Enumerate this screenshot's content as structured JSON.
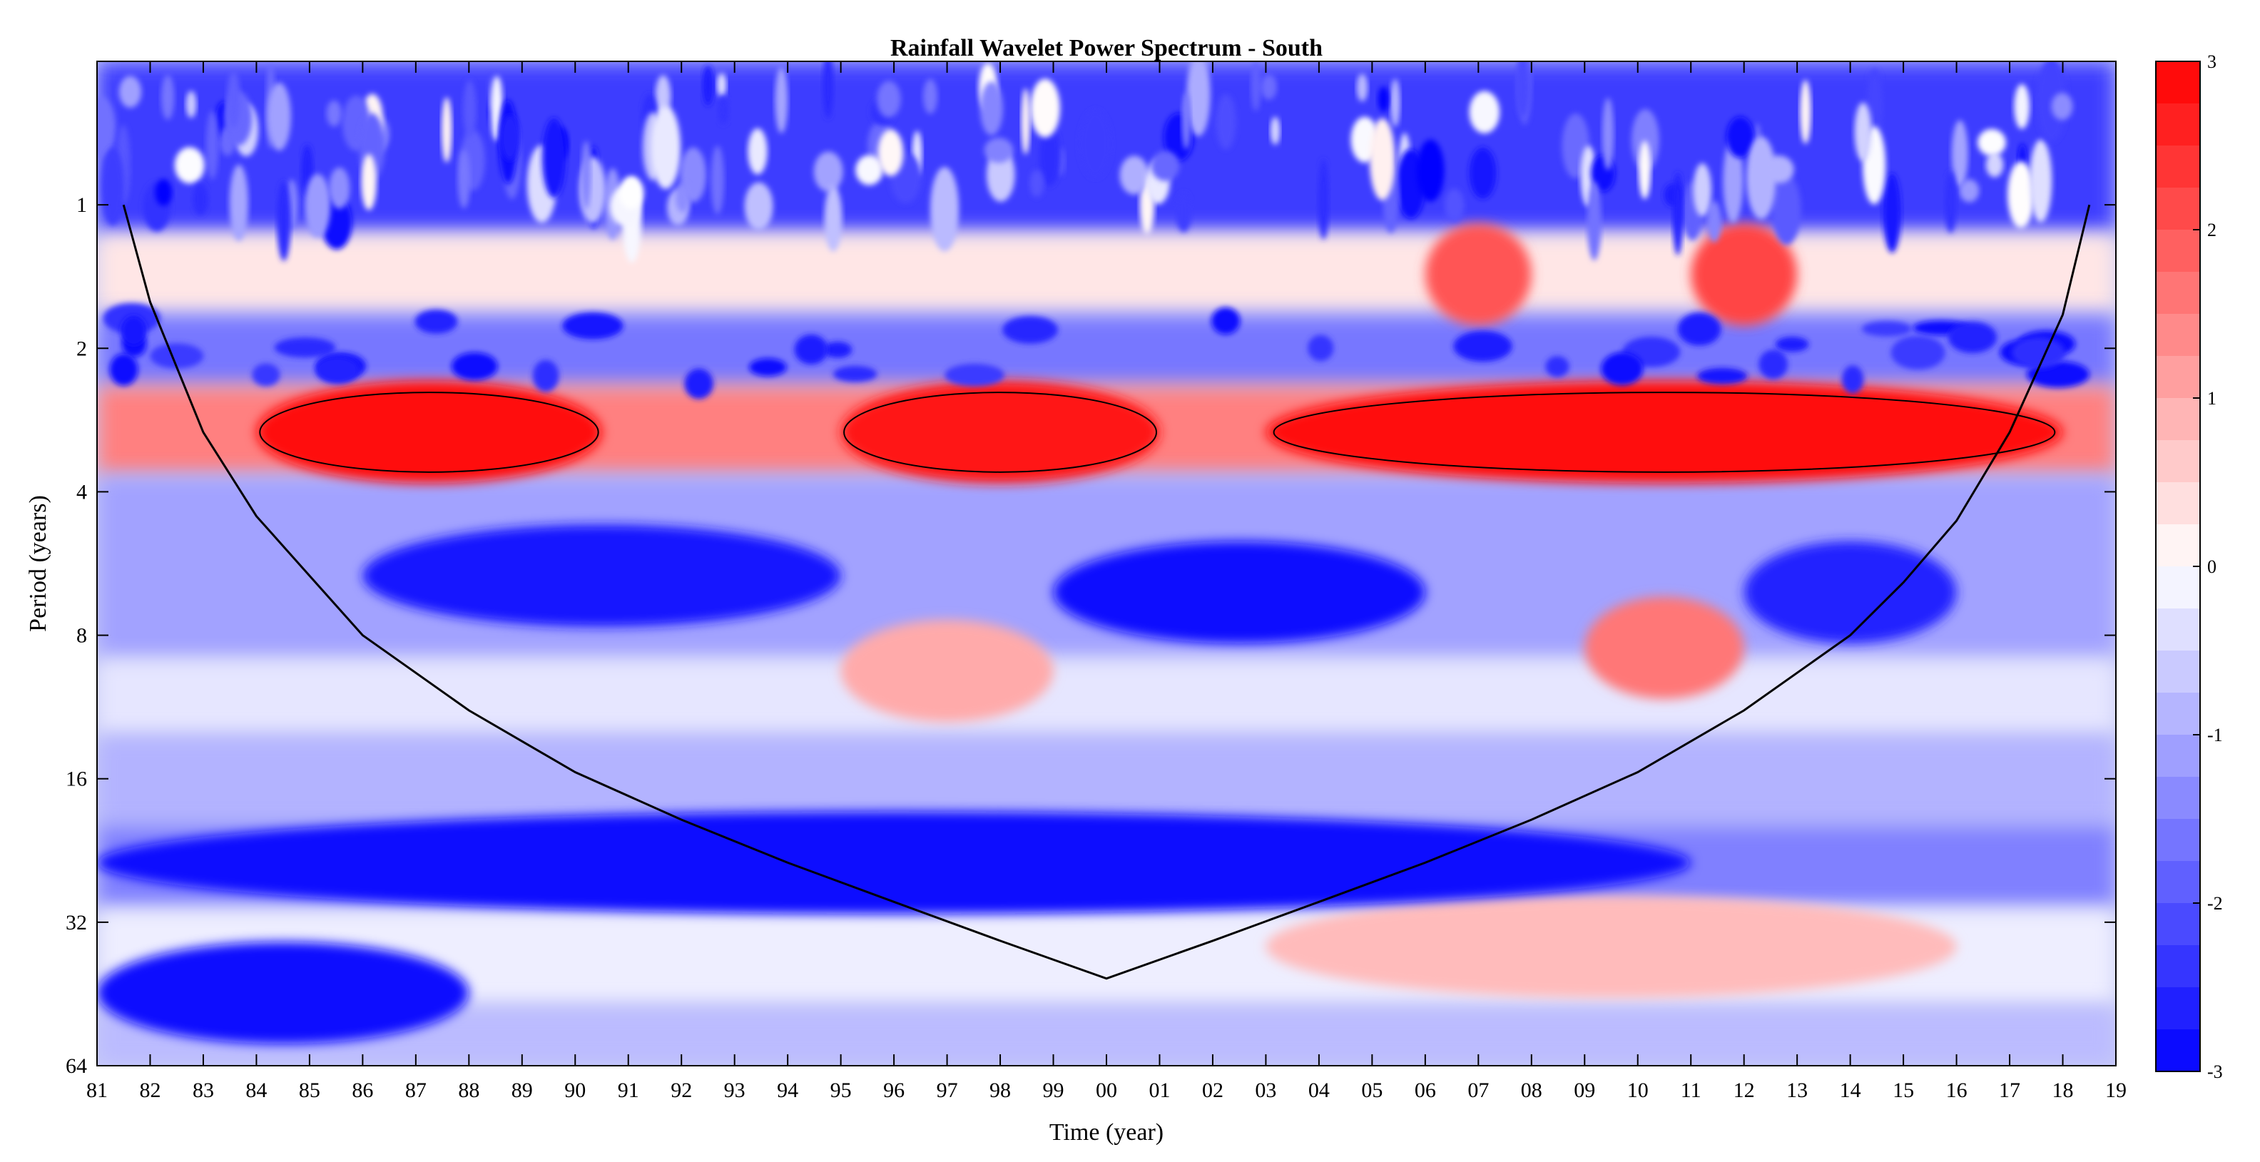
{
  "chart_data": {
    "type": "heatmap",
    "title": "Rainfall Wavelet Power Spectrum - South",
    "xlabel": "Time (year)",
    "ylabel": "Period (years)",
    "x_ticks": [
      "81",
      "82",
      "83",
      "84",
      "85",
      "86",
      "87",
      "88",
      "89",
      "90",
      "91",
      "92",
      "93",
      "94",
      "95",
      "96",
      "97",
      "98",
      "99",
      "00",
      "01",
      "02",
      "03",
      "04",
      "05",
      "06",
      "07",
      "08",
      "09",
      "10",
      "11",
      "12",
      "13",
      "14",
      "15",
      "16",
      "17",
      "18",
      "19"
    ],
    "y_ticks": [
      {
        "label": "1",
        "value": 1
      },
      {
        "label": "2",
        "value": 2
      },
      {
        "label": "4",
        "value": 4
      },
      {
        "label": "8",
        "value": 8
      },
      {
        "label": "16",
        "value": 16
      },
      {
        "label": "32",
        "value": 32
      },
      {
        "label": "64",
        "value": 64
      }
    ],
    "y_scale": "log2",
    "y_reversed": true,
    "ylim": [
      0.5,
      64
    ],
    "xlim": [
      1981,
      2019
    ],
    "colorbar": {
      "range": [
        -3,
        3
      ],
      "ticks": [
        "3",
        "2",
        "1",
        "0",
        "-1",
        "-2",
        "-3"
      ],
      "low_color": "#0000ff",
      "mid_color": "#ffffff",
      "high_color": "#ff0000",
      "levels": 24
    },
    "cone_of_influence": [
      [
        1981.5,
        1.0
      ],
      [
        1982.0,
        1.6
      ],
      [
        1983.0,
        3.0
      ],
      [
        1984.0,
        4.5
      ],
      [
        1985.0,
        6.0
      ],
      [
        1986.0,
        8.0
      ],
      [
        1988.0,
        11.5
      ],
      [
        1990.0,
        15.5
      ],
      [
        1992.0,
        19.5
      ],
      [
        1994.0,
        24.0
      ],
      [
        1996.0,
        29.0
      ],
      [
        1998.0,
        35.0
      ],
      [
        2000.0,
        42.0
      ],
      [
        2002.0,
        35.0
      ],
      [
        2004.0,
        29.0
      ],
      [
        2006.0,
        24.0
      ],
      [
        2008.0,
        19.5
      ],
      [
        2010.0,
        15.5
      ],
      [
        2012.0,
        11.5
      ],
      [
        2014.0,
        8.0
      ],
      [
        2015.0,
        6.2
      ],
      [
        2016.0,
        4.6
      ],
      [
        2017.0,
        3.0
      ],
      [
        2018.0,
        1.7
      ],
      [
        2018.5,
        1.0
      ]
    ],
    "features": [
      {
        "x0": 1984.0,
        "x1": 1990.5,
        "period": 3.0,
        "value": 2.8,
        "kind": "significant-high"
      },
      {
        "x0": 1995.0,
        "x1": 2001.0,
        "period": 3.0,
        "value": 2.7,
        "kind": "significant-high"
      },
      {
        "x0": 2003.0,
        "x1": 2018.0,
        "period": 3.0,
        "value": 2.9,
        "kind": "significant-high"
      },
      {
        "x0": 2006.0,
        "x1": 2008.0,
        "period": 1.4,
        "value": 2.0,
        "kind": "high"
      },
      {
        "x0": 2011.0,
        "x1": 2013.0,
        "period": 1.4,
        "value": 2.2,
        "kind": "high"
      },
      {
        "x0": 1995.0,
        "x1": 1999.0,
        "period": 9.5,
        "value": 1.0,
        "kind": "high"
      },
      {
        "x0": 2009.0,
        "x1": 2012.0,
        "period": 8.5,
        "value": 1.6,
        "kind": "high"
      },
      {
        "x0": 2003.0,
        "x1": 2016.0,
        "period": 36.0,
        "value": 0.8,
        "kind": "high"
      },
      {
        "x0": 1986.0,
        "x1": 1995.0,
        "period": 6.0,
        "value": -2.7,
        "kind": "low"
      },
      {
        "x0": 1999.0,
        "x1": 2006.0,
        "period": 6.5,
        "value": -2.9,
        "kind": "low"
      },
      {
        "x0": 2012.0,
        "x1": 2016.0,
        "period": 6.5,
        "value": -2.6,
        "kind": "low"
      },
      {
        "x0": 1981.0,
        "x1": 2011.0,
        "period": 24.0,
        "value": -2.8,
        "kind": "low"
      },
      {
        "x0": 1981.0,
        "x1": 1988.0,
        "period": 45.0,
        "value": -2.9,
        "kind": "low"
      }
    ]
  }
}
